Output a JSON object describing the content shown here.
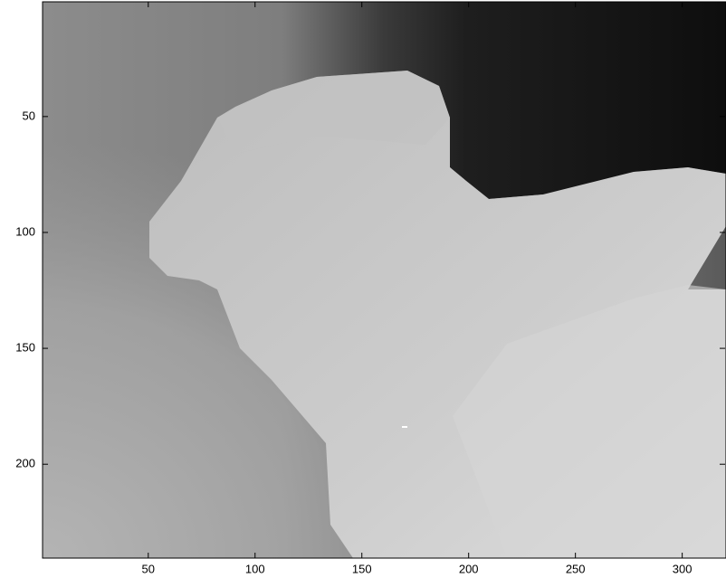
{
  "chart_data": {
    "type": "image",
    "xlim": [
      0.5,
      320.5
    ],
    "xticks": [
      50,
      100,
      150,
      200,
      250,
      300
    ],
    "ylim": [
      240.5,
      0.5
    ],
    "yticks": [
      50,
      100,
      150,
      200
    ]
  }
}
